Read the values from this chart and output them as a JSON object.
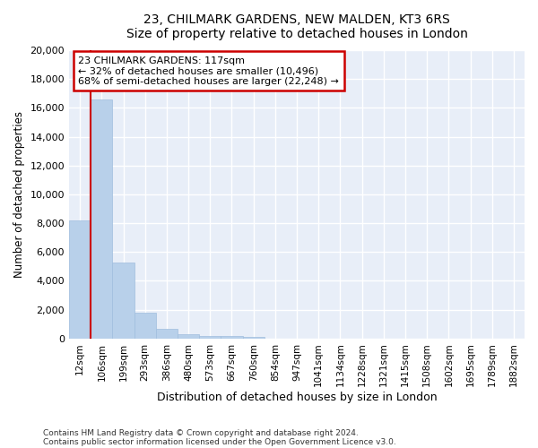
{
  "title": "23, CHILMARK GARDENS, NEW MALDEN, KT3 6RS",
  "subtitle": "Size of property relative to detached houses in London",
  "xlabel": "Distribution of detached houses by size in London",
  "ylabel": "Number of detached properties",
  "bar_color": "#b8d0ea",
  "bar_edge_color": "#a0bede",
  "annotation_line_color": "#cc0000",
  "annotation_box_color": "#cc0000",
  "property_label": "23 CHILMARK GARDENS: 117sqm",
  "pct_smaller": 32,
  "n_smaller": 10496,
  "pct_larger": 68,
  "n_larger": 22248,
  "footer1": "Contains HM Land Registry data © Crown copyright and database right 2024.",
  "footer2": "Contains public sector information licensed under the Open Government Licence v3.0.",
  "categories": [
    "12sqm",
    "106sqm",
    "199sqm",
    "293sqm",
    "386sqm",
    "480sqm",
    "573sqm",
    "667sqm",
    "760sqm",
    "854sqm",
    "947sqm",
    "1041sqm",
    "1134sqm",
    "1228sqm",
    "1321sqm",
    "1415sqm",
    "1508sqm",
    "1602sqm",
    "1695sqm",
    "1789sqm",
    "1882sqm"
  ],
  "values": [
    8200,
    16600,
    5300,
    1800,
    700,
    330,
    200,
    170,
    130,
    0,
    0,
    0,
    0,
    0,
    0,
    0,
    0,
    0,
    0,
    0,
    0
  ],
  "ylim": [
    0,
    20000
  ],
  "yticks": [
    0,
    2000,
    4000,
    6000,
    8000,
    10000,
    12000,
    14000,
    16000,
    18000,
    20000
  ],
  "property_bin_index": 1,
  "background_color": "#e8eef8"
}
